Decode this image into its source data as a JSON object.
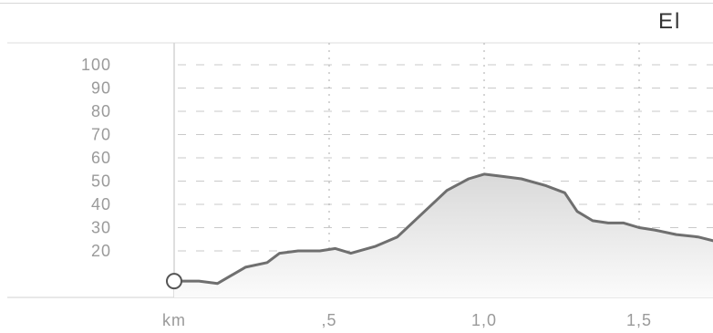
{
  "chart_data": {
    "type": "area",
    "title": "El",
    "xlabel": "km",
    "ylabel": "",
    "x_tick_labels": [
      ",5",
      "1,0",
      "1,5"
    ],
    "x_ticks": [
      0.5,
      1.0,
      1.5
    ],
    "y_ticks": [
      20,
      30,
      40,
      50,
      60,
      70,
      80,
      90,
      100
    ],
    "xlim": [
      0,
      1.75
    ],
    "ylim": [
      0,
      100
    ],
    "grid": true,
    "series": [
      {
        "x": [
          0.0,
          0.03,
          0.08,
          0.14,
          0.23,
          0.3,
          0.34,
          0.4,
          0.47,
          0.52,
          0.57,
          0.65,
          0.72,
          0.8,
          0.88,
          0.95,
          1.0,
          1.06,
          1.12,
          1.2,
          1.26,
          1.3,
          1.35,
          1.4,
          1.45,
          1.5,
          1.55,
          1.62,
          1.69,
          1.75
        ],
        "y": [
          7,
          7,
          7,
          6,
          13,
          15,
          19,
          20,
          20,
          21,
          19,
          22,
          26,
          36,
          46,
          51,
          53,
          52,
          51,
          48,
          45,
          37,
          33,
          32,
          32,
          30,
          29,
          27,
          26,
          24
        ]
      }
    ],
    "colors": {
      "line": "#6f6f6f",
      "fill_top": "#d9d9d9",
      "fill_bottom": "#fbfbfb",
      "grid": "#c9c9c9",
      "tick": "#9a9a9a"
    }
  }
}
